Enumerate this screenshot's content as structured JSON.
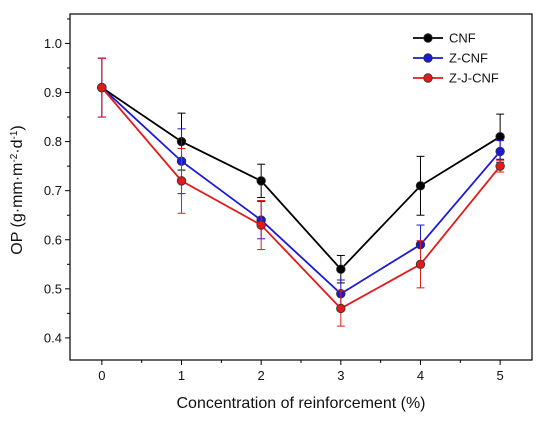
{
  "chart_data": {
    "type": "line",
    "xlabel": "Concentration of reinforcement (%)",
    "ylabel": {
      "base": "OP (g·mm·m",
      "exp1": "-2",
      "mid": "·d",
      "exp2": "-1",
      "end": ")"
    },
    "x": [
      0,
      1,
      2,
      3,
      4,
      5
    ],
    "x_ticks": [
      "0",
      "1",
      "2",
      "3",
      "4",
      "5"
    ],
    "xlim": [
      -0.4,
      5.4
    ],
    "y_ticks": [
      "0.4",
      "0.5",
      "0.6",
      "0.7",
      "0.8",
      "0.9",
      "1.0"
    ],
    "ylim": [
      0.355,
      1.06
    ],
    "grid": false,
    "legend_position": "top-right",
    "series": [
      {
        "name": "CNF",
        "color": "#000000",
        "values": [
          0.91,
          0.8,
          0.72,
          0.54,
          0.71,
          0.81
        ],
        "errors": [
          0.06,
          0.058,
          0.034,
          0.028,
          0.06,
          0.046
        ]
      },
      {
        "name": "Z-CNF",
        "color": "#1a1ad6",
        "values": [
          0.91,
          0.76,
          0.64,
          0.49,
          0.59,
          0.78
        ],
        "errors": [
          0.06,
          0.066,
          0.038,
          0.028,
          0.04,
          0.022
        ]
      },
      {
        "name": "Z-J-CNF",
        "color": "#e11b1b",
        "values": [
          0.91,
          0.72,
          0.63,
          0.46,
          0.55,
          0.75
        ],
        "errors": [
          0.06,
          0.066,
          0.05,
          0.036,
          0.048,
          0.012
        ]
      }
    ]
  }
}
